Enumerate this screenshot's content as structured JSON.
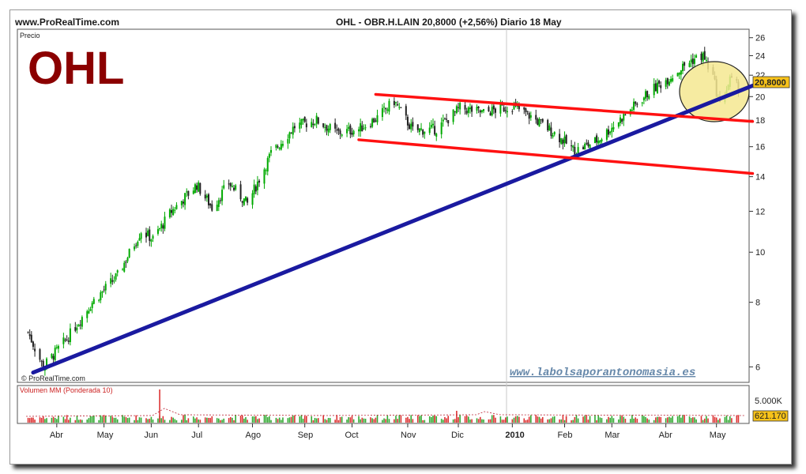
{
  "header": {
    "site": "www.ProRealTime.com",
    "title": "OHL - OBR.H.LAIN    20,8000 (+2,56%)    Diario  18 May"
  },
  "ticker_logo": "OHL",
  "price_panel": {
    "label": "Precio",
    "watermark": "© ProRealTime.com",
    "blog": "www.labolsaporantonomasia.es",
    "last_price_label": "20,8000"
  },
  "volume_panel": {
    "label": "Volumen MM (Ponderada 10)",
    "tick_label": "5.000K",
    "last_value_label": "621.170"
  },
  "colors": {
    "up_candle": "#00aa00",
    "down_candle": "#222222",
    "support_line": "#1a1aa0",
    "channel_lines": "#ff1111",
    "highlight_ellipse": "#f5e890",
    "logo": "#8b0000",
    "blog_link": "#6688aa",
    "volume_up": "#dd3333",
    "volume_down": "#33aa33"
  },
  "chart_data": {
    "type": "candlestick",
    "scale": "log",
    "ylim": [
      5.6,
      27
    ],
    "y_ticks": [
      6,
      8,
      10,
      12,
      14,
      16,
      18,
      20,
      22,
      24,
      26
    ],
    "y_tick_labels": [
      "6",
      "8",
      "10",
      "12",
      "14",
      "16",
      "18",
      "20",
      "22",
      "24",
      "26"
    ],
    "x_ticks": [
      "Abr",
      "May",
      "Jun",
      "Jul",
      "Ago",
      "Sep",
      "Oct",
      "Nov",
      "Dic",
      "2010",
      "Feb",
      "Mar",
      "Abr",
      "May"
    ],
    "last_close": 20.8,
    "close_path": [
      {
        "date": "2009-03-23",
        "close": 7.0
      },
      {
        "date": "2009-04-01",
        "close": 6.0
      },
      {
        "date": "2009-04-15",
        "close": 6.8
      },
      {
        "date": "2009-04-30",
        "close": 8.0
      },
      {
        "date": "2009-05-15",
        "close": 9.0
      },
      {
        "date": "2009-05-29",
        "close": 11.0
      },
      {
        "date": "2009-06-05",
        "close": 10.6
      },
      {
        "date": "2009-06-16",
        "close": 12.0
      },
      {
        "date": "2009-07-01",
        "close": 13.5
      },
      {
        "date": "2009-07-10",
        "close": 12.2
      },
      {
        "date": "2009-07-20",
        "close": 13.6
      },
      {
        "date": "2009-07-31",
        "close": 12.4
      },
      {
        "date": "2009-08-14",
        "close": 15.5
      },
      {
        "date": "2009-08-28",
        "close": 17.5
      },
      {
        "date": "2009-09-10",
        "close": 18.0
      },
      {
        "date": "2009-09-22",
        "close": 17.0
      },
      {
        "date": "2009-10-05",
        "close": 17.3
      },
      {
        "date": "2009-10-16",
        "close": 18.2
      },
      {
        "date": "2009-10-26",
        "close": 19.6
      },
      {
        "date": "2009-11-06",
        "close": 17.2
      },
      {
        "date": "2009-11-20",
        "close": 17.3
      },
      {
        "date": "2009-12-04",
        "close": 19.0
      },
      {
        "date": "2009-12-18",
        "close": 18.6
      },
      {
        "date": "2010-01-04",
        "close": 19.2
      },
      {
        "date": "2010-01-15",
        "close": 18.3
      },
      {
        "date": "2010-01-29",
        "close": 17.0
      },
      {
        "date": "2010-02-10",
        "close": 15.7
      },
      {
        "date": "2010-02-24",
        "close": 16.5
      },
      {
        "date": "2010-03-10",
        "close": 18.2
      },
      {
        "date": "2010-03-26",
        "close": 20.4
      },
      {
        "date": "2010-04-09",
        "close": 22.0
      },
      {
        "date": "2010-04-20",
        "close": 23.5
      },
      {
        "date": "2010-04-27",
        "close": 24.0
      },
      {
        "date": "2010-05-03",
        "close": 21.8
      },
      {
        "date": "2010-05-07",
        "close": 19.2
      },
      {
        "date": "2010-05-13",
        "close": 21.5
      },
      {
        "date": "2010-05-18",
        "close": 20.8
      }
    ],
    "trendlines": [
      {
        "name": "support",
        "color": "blue",
        "from": {
          "date": "2009-03-26",
          "price": 5.85
        },
        "to": {
          "date": "2010-05-18",
          "price": 21.0
        }
      },
      {
        "name": "channel-upper",
        "color": "red",
        "from": {
          "date": "2009-10-15",
          "price": 20.2
        },
        "to": {
          "date": "2010-05-18",
          "price": 17.9
        }
      },
      {
        "name": "channel-lower",
        "color": "red",
        "from": {
          "date": "2009-10-05",
          "price": 16.5
        },
        "to": {
          "date": "2010-05-18",
          "price": 14.2
        }
      }
    ],
    "volume": {
      "label": "Volumen MM (Ponderada 10)",
      "tick": "5.000K",
      "last": "621.170"
    }
  }
}
